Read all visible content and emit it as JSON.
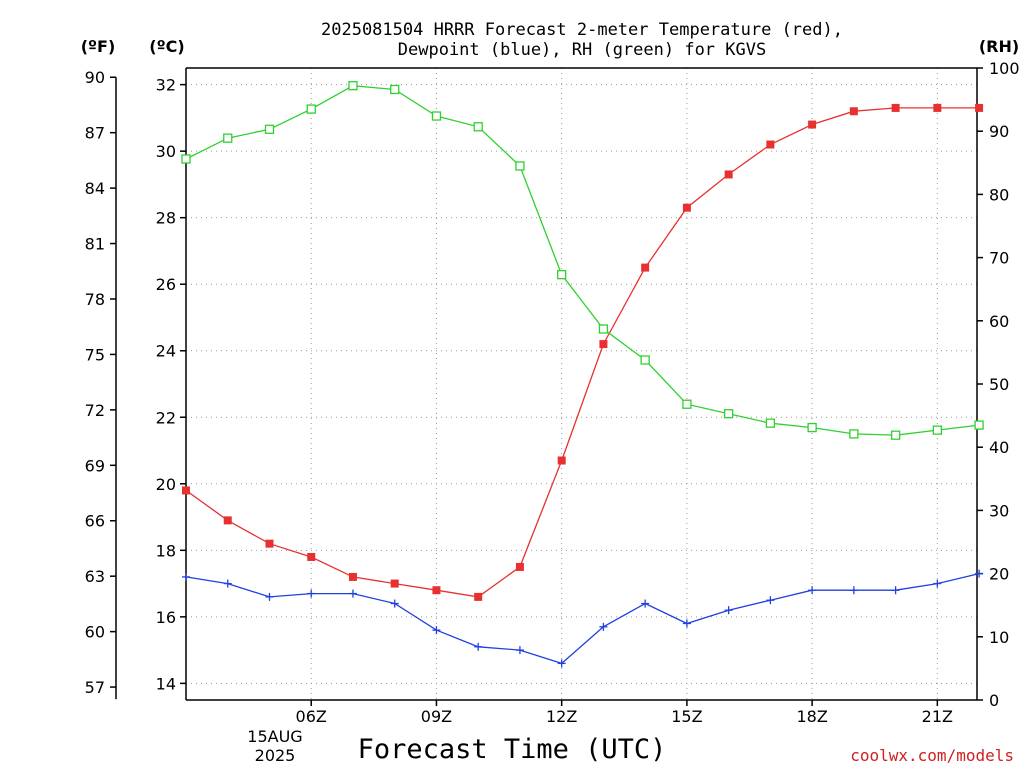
{
  "chart_data": {
    "type": "line",
    "title_line1": "2025081504 HRRR Forecast 2-meter Temperature (red),",
    "title_line2": "Dewpoint (blue), RH (green) for KGVS",
    "xlabel": "Forecast Time (UTC)",
    "credit": "coolwx.com/models",
    "date_label_line1": "15AUG",
    "date_label_line2": "2025",
    "units": {
      "fahrenheit": "(ºF)",
      "celsius": "(ºC)",
      "rh": "(RH)"
    },
    "x_hours": [
      3,
      4,
      5,
      6,
      7,
      8,
      9,
      10,
      11,
      12,
      13,
      14,
      15,
      16,
      17,
      18,
      19,
      20,
      21,
      22
    ],
    "x_ticks": [
      {
        "hour": 6,
        "label": "06Z"
      },
      {
        "hour": 9,
        "label": "09Z"
      },
      {
        "hour": 12,
        "label": "12Z"
      },
      {
        "hour": 15,
        "label": "15Z"
      },
      {
        "hour": 18,
        "label": "18Z"
      },
      {
        "hour": 21,
        "label": "21Z"
      }
    ],
    "xlim": [
      3,
      21.95
    ],
    "celsius_axis": {
      "ylim": [
        13.5,
        32.5
      ],
      "ticks": [
        14,
        16,
        18,
        20,
        22,
        24,
        26,
        28,
        30,
        32
      ]
    },
    "fahrenheit_axis": {
      "ticks": [
        57,
        60,
        63,
        66,
        69,
        72,
        75,
        78,
        81,
        84,
        87,
        90
      ]
    },
    "rh_axis": {
      "ylim": [
        0,
        100
      ],
      "ticks": [
        0,
        10,
        20,
        30,
        40,
        50,
        60,
        70,
        80,
        90,
        100
      ]
    },
    "series": [
      {
        "name": "Temperature",
        "color": "#e83030",
        "marker": "filled-square",
        "axis": "celsius",
        "values": [
          19.8,
          18.9,
          18.2,
          17.8,
          17.2,
          17.0,
          16.8,
          16.6,
          17.5,
          20.7,
          24.2,
          26.5,
          28.3,
          29.3,
          30.2,
          30.8,
          31.2,
          31.3,
          31.3,
          31.3
        ]
      },
      {
        "name": "Dewpoint",
        "color": "#2040e0",
        "marker": "plus",
        "axis": "celsius",
        "values": [
          17.2,
          17.0,
          16.6,
          16.7,
          16.7,
          16.4,
          15.6,
          15.1,
          15.0,
          14.6,
          15.7,
          16.4,
          15.8,
          16.2,
          16.5,
          16.8,
          16.8,
          16.8,
          17.0,
          17.3
        ]
      },
      {
        "name": "RH",
        "color": "#30d030",
        "marker": "open-square",
        "axis": "rh",
        "values": [
          85.6,
          88.9,
          90.3,
          93.5,
          97.2,
          96.6,
          92.4,
          90.7,
          84.5,
          67.3,
          58.7,
          53.8,
          46.8,
          45.3,
          43.8,
          43.1,
          42.1,
          41.9,
          42.7,
          43.5
        ]
      }
    ]
  }
}
